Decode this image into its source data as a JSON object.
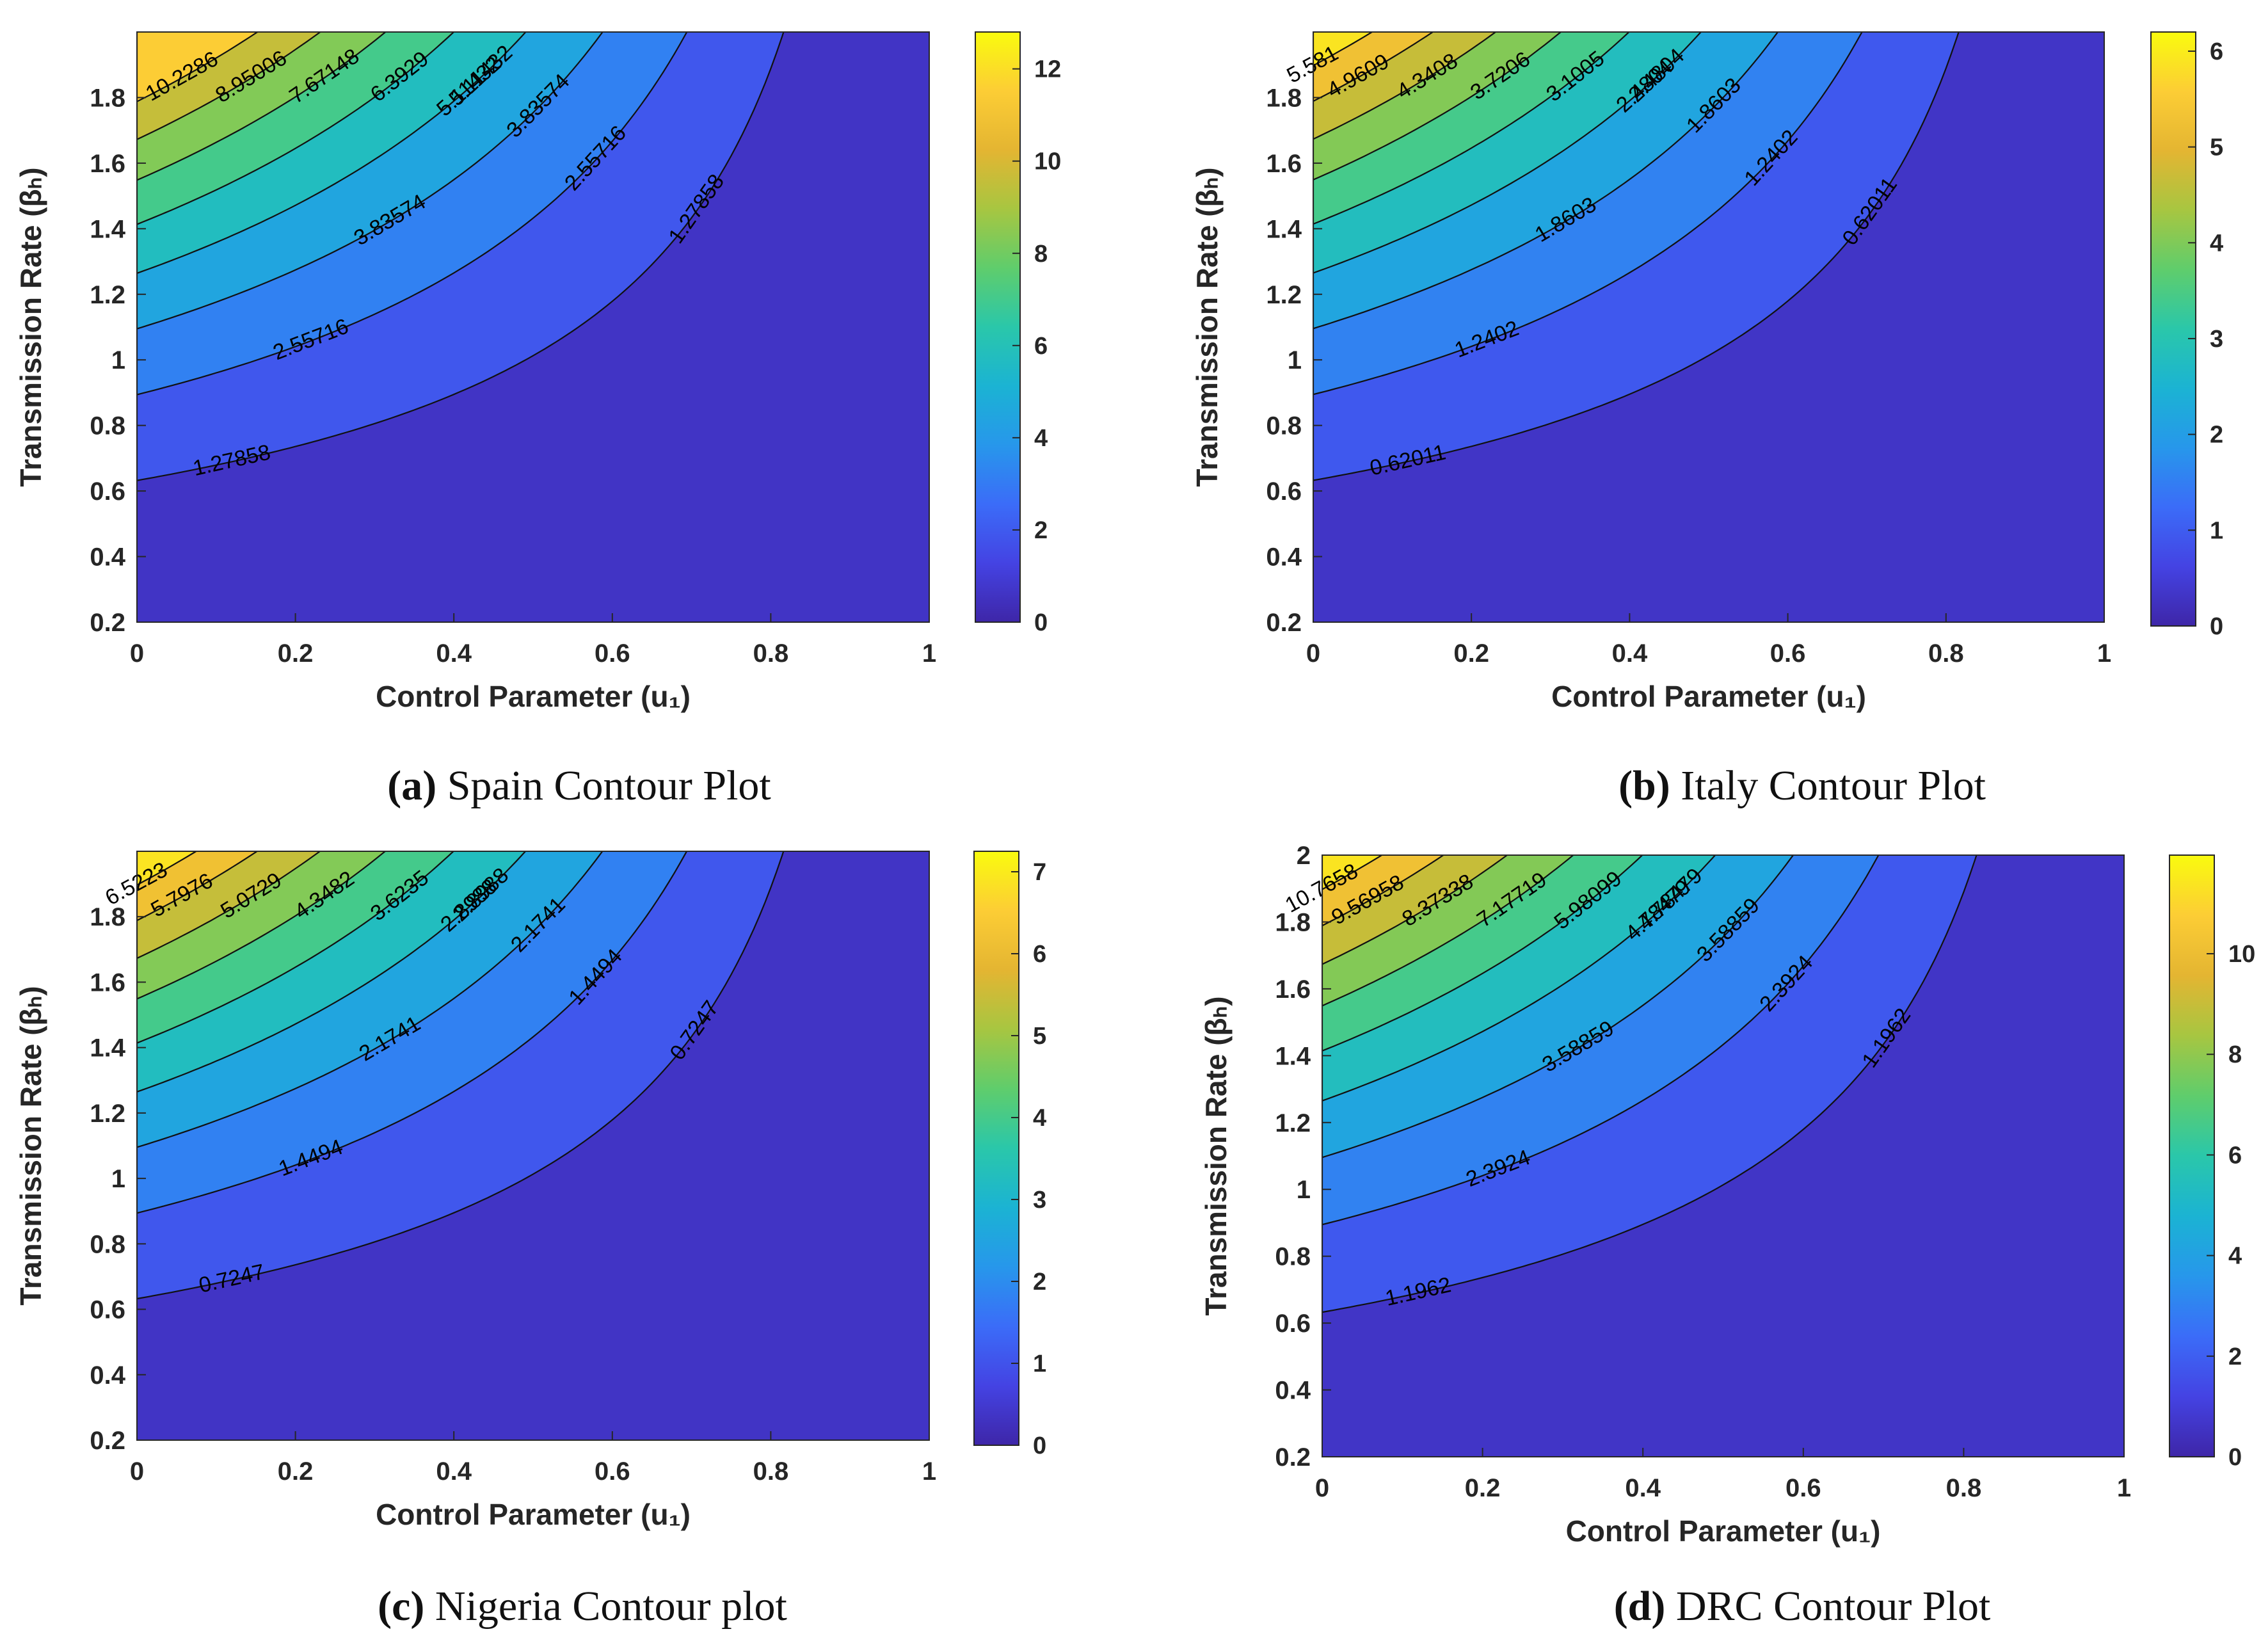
{
  "figure": {
    "colormap": "parula",
    "colormap_stops": [
      "#3e26a8",
      "#4443e3",
      "#3b6cf8",
      "#2797eb",
      "#1bb3d3",
      "#2ac7aa",
      "#5fcd6c",
      "#a7c641",
      "#e4b532",
      "#fccd35",
      "#f9fb0e"
    ]
  },
  "chart_data": [
    {
      "type": "contour",
      "panel_id": "a",
      "caption_tag": "(a)",
      "caption_text": "Spain Contour Plot",
      "xlabel": "Control Parameter (u₁)",
      "ylabel": "Transmission Rate (βₕ)",
      "xlim": [
        0,
        1
      ],
      "ylim": [
        0.2,
        2.0
      ],
      "xticks": [
        "0",
        "0.2",
        "0.4",
        "0.6",
        "0.8",
        "1"
      ],
      "yticks": [
        "0.2",
        "0.4",
        "0.6",
        "0.8",
        "1",
        "1.2",
        "1.4",
        "1.6",
        "1.8"
      ],
      "levels": [
        1.27858,
        2.55716,
        3.83574,
        5.11432,
        6.3929,
        7.67148,
        8.95006,
        10.2286
      ],
      "level_labels": [
        "1.27858",
        "2.55716",
        "3.83574",
        "5.11432",
        "6.3929",
        "7.67148",
        "8.95006",
        "10.2286"
      ],
      "zmax": 12.8,
      "colorbar": {
        "clim": [
          0,
          12.8
        ],
        "ticks": [
          "0",
          "2",
          "4",
          "6",
          "8",
          "10",
          "12"
        ]
      }
    },
    {
      "type": "contour",
      "panel_id": "b",
      "caption_tag": "(b)",
      "caption_text": "Italy Contour Plot",
      "xlabel": "Control Parameter (u₁)",
      "ylabel": "Transmission Rate (βₕ)",
      "xlim": [
        0,
        1
      ],
      "ylim": [
        0.2,
        2.0
      ],
      "xticks": [
        "0",
        "0.2",
        "0.4",
        "0.6",
        "0.8",
        "1"
      ],
      "yticks": [
        "0.2",
        "0.4",
        "0.6",
        "0.8",
        "1",
        "1.2",
        "1.4",
        "1.6",
        "1.8"
      ],
      "levels": [
        0.62011,
        1.2402,
        1.8603,
        2.4804,
        3.1005,
        3.7206,
        4.3408,
        4.9609,
        5.581
      ],
      "level_labels": [
        "0.62011",
        "1.2402",
        "1.8603",
        "2.4804",
        "3.1005",
        "3.7206",
        "4.3408",
        "4.9609",
        "5.581"
      ],
      "zmax": 6.2,
      "colorbar": {
        "clim": [
          0,
          6.2
        ],
        "ticks": [
          "0",
          "1",
          "2",
          "3",
          "4",
          "5",
          "6"
        ]
      }
    },
    {
      "type": "contour",
      "panel_id": "c",
      "caption_tag": "(c)",
      "caption_text": "Nigeria Contour plot",
      "xlabel": "Control Parameter (u₁)",
      "ylabel": "Transmission Rate (βₕ)",
      "xlim": [
        0,
        1
      ],
      "ylim": [
        0.2,
        2.0
      ],
      "xticks": [
        "0",
        "0.2",
        "0.4",
        "0.6",
        "0.8",
        "1"
      ],
      "yticks": [
        "0.2",
        "0.4",
        "0.6",
        "0.8",
        "1",
        "1.2",
        "1.4",
        "1.6",
        "1.8"
      ],
      "levels": [
        0.7247,
        1.4494,
        2.1741,
        2.8988,
        3.6235,
        4.3482,
        5.0729,
        5.7976,
        6.5223
      ],
      "level_labels": [
        "0.7247",
        "1.4494",
        "2.1741",
        "2.8988",
        "3.6235",
        "4.3482",
        "5.0729",
        "5.7976",
        "6.5223"
      ],
      "zmax": 7.25,
      "colorbar": {
        "clim": [
          0,
          7.25
        ],
        "ticks": [
          "0",
          "1",
          "2",
          "3",
          "4",
          "5",
          "6",
          "7"
        ]
      }
    },
    {
      "type": "contour",
      "panel_id": "d",
      "caption_tag": "(d)",
      "caption_text": "DRC Contour Plot",
      "xlabel": "Control Parameter (u₁)",
      "ylabel": "Transmission Rate (βₕ)",
      "xlim": [
        0,
        1
      ],
      "ylim": [
        0.2,
        2.0
      ],
      "xticks": [
        "0",
        "0.2",
        "0.4",
        "0.6",
        "0.8",
        "1"
      ],
      "yticks": [
        "0.2",
        "0.4",
        "0.6",
        "0.8",
        "1",
        "1.2",
        "1.4",
        "1.6",
        "1.8",
        "2"
      ],
      "levels": [
        1.1962,
        2.3924,
        3.58859,
        4.78479,
        5.98099,
        7.17719,
        8.37338,
        9.56958,
        10.7658
      ],
      "level_labels": [
        "1.1962",
        "2.3924",
        "3.58859",
        "4.78479",
        "5.98099",
        "7.17719",
        "8.37338",
        "9.56958",
        "10.7658"
      ],
      "zmax": 11.96,
      "colorbar": {
        "clim": [
          0,
          11.96
        ],
        "ticks": [
          "0",
          "2",
          "4",
          "6",
          "8",
          "10"
        ]
      }
    }
  ]
}
